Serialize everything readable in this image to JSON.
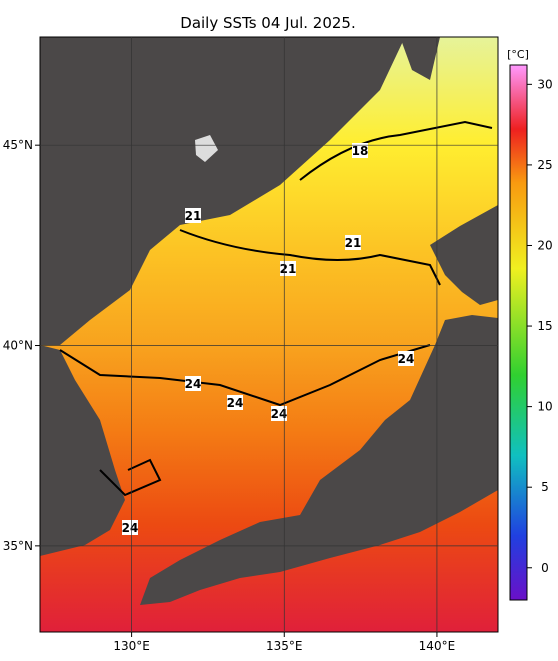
{
  "title": "Daily SSTs 04 Jul. 2025.",
  "map": {
    "lon_lim": [
      127,
      142
    ],
    "lat_lim": [
      32.85,
      47.7
    ]
  },
  "lat_labels": [
    {
      "value": 45,
      "label": "45°N"
    },
    {
      "value": 40,
      "label": "40°N"
    },
    {
      "value": 35,
      "label": "35°N"
    }
  ],
  "lon_labels": [
    {
      "value": 130,
      "label": "130°E"
    },
    {
      "value": 135,
      "label": "135°E"
    },
    {
      "value": 140,
      "label": "140°E"
    }
  ],
  "colorbar": {
    "unit": "[°C]",
    "lim": [
      -2,
      31.2
    ],
    "ticks": [
      30,
      25,
      20,
      15,
      10,
      5,
      0
    ]
  },
  "contour_labels": [
    "18",
    "21",
    "21",
    "21",
    "24",
    "24",
    "24",
    "24",
    "24"
  ]
}
